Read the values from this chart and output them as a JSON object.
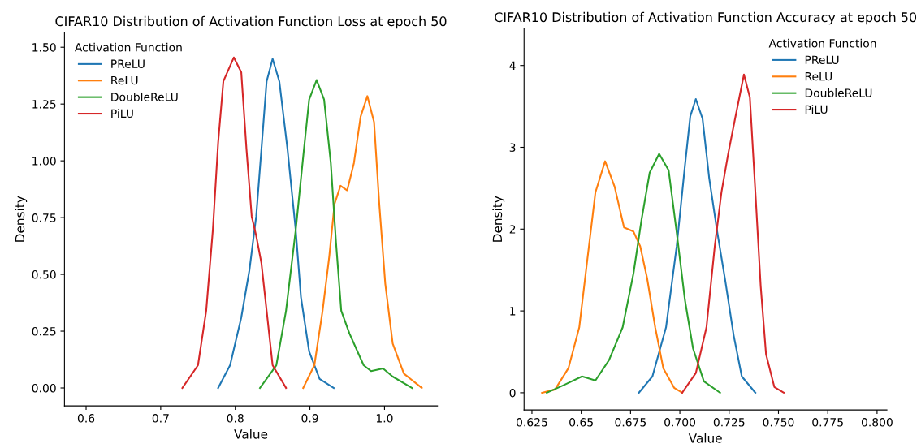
{
  "chart_data": [
    {
      "type": "line",
      "title": "CIFAR10 Distribution of Activation Function Loss at epoch 50",
      "xlabel": "Value",
      "ylabel": "Density",
      "legend_title": "Activation Function",
      "legend": "top left",
      "grid": false,
      "xlim": [
        0.571,
        1.071
      ],
      "xticks": [
        {
          "value": 0.6,
          "label": "0.6"
        },
        {
          "value": 0.7,
          "label": "0.7"
        },
        {
          "value": 0.8,
          "label": "0.8"
        },
        {
          "value": 0.9,
          "label": "0.9"
        },
        {
          "value": 1.0,
          "label": "1.0"
        }
      ],
      "ylim": [
        -0.079,
        1.564
      ],
      "yticks": [
        {
          "value": 0,
          "label": "0.00"
        },
        {
          "value": 0.25,
          "label": "0.25"
        },
        {
          "value": 0.5,
          "label": "0.50"
        },
        {
          "value": 0.75,
          "label": "0.75"
        },
        {
          "value": 1.0,
          "label": "1.00"
        },
        {
          "value": 1.25,
          "label": "1.25"
        },
        {
          "value": 1.5,
          "label": "1.50"
        }
      ],
      "series": [
        {
          "name": "PReLU",
          "color": "#1f77b4",
          "x": [
            0.777,
            0.793,
            0.808,
            0.819,
            0.828,
            0.835,
            0.842,
            0.85,
            0.859,
            0.87,
            0.881,
            0.888,
            0.899,
            0.913,
            0.932
          ],
          "values": [
            0,
            0.1,
            0.31,
            0.52,
            0.755,
            1.05,
            1.35,
            1.449,
            1.35,
            1.05,
            0.695,
            0.4,
            0.16,
            0.04,
            0
          ]
        },
        {
          "name": "ReLU",
          "color": "#ff7f0e",
          "x": [
            0.891,
            0.906,
            0.917,
            0.926,
            0.933,
            0.941,
            0.95,
            0.959,
            0.968,
            0.977,
            0.986,
            0.993,
            1.001,
            1.011,
            1.026,
            1.05
          ],
          "values": [
            0,
            0.1,
            0.34,
            0.58,
            0.81,
            0.89,
            0.87,
            0.99,
            1.195,
            1.285,
            1.17,
            0.81,
            0.46,
            0.195,
            0.063,
            0
          ]
        },
        {
          "name": "DoubleReLU",
          "color": "#2ca02c",
          "x": [
            0.833,
            0.855,
            0.868,
            0.881,
            0.892,
            0.899,
            0.909,
            0.919,
            0.928,
            0.935,
            0.942,
            0.953,
            0.972,
            0.982,
            0.998,
            1.011,
            1.037
          ],
          "values": [
            0,
            0.1,
            0.34,
            0.695,
            1.05,
            1.27,
            1.356,
            1.27,
            0.99,
            0.64,
            0.34,
            0.24,
            0.1,
            0.074,
            0.086,
            0.05,
            0
          ]
        },
        {
          "name": "PiLU",
          "color": "#d62728",
          "x": [
            0.729,
            0.75,
            0.761,
            0.77,
            0.777,
            0.784,
            0.798,
            0.808,
            0.815,
            0.822,
            0.828,
            0.835,
            0.842,
            0.85,
            0.868
          ],
          "values": [
            0,
            0.1,
            0.34,
            0.7,
            1.08,
            1.35,
            1.455,
            1.39,
            1.05,
            0.755,
            0.67,
            0.55,
            0.34,
            0.1,
            0
          ]
        }
      ]
    },
    {
      "type": "line",
      "title": "CIFAR10 Distribution of Activation Function Accuracy at epoch 50",
      "xlabel": "Value",
      "ylabel": "Density",
      "legend_title": "Activation Function",
      "legend": "top right",
      "grid": false,
      "xlim": [
        0.621,
        0.805
      ],
      "xticks": [
        0.625,
        0.65,
        0.675,
        {
          "value": 0.7,
          "label": "0.700"
        },
        0.725,
        {
          "value": 0.75,
          "label": "0.750"
        },
        0.775,
        {
          "value": 0.8,
          "label": "0.800"
        }
      ],
      "ylim": [
        -0.21,
        4.45
      ],
      "yticks": [
        0,
        1,
        2,
        3,
        4
      ],
      "series": [
        {
          "name": "PReLU",
          "color": "#1f77b4",
          "x": [
            0.6792,
            0.6861,
            0.693,
            0.6984,
            0.7026,
            0.7053,
            0.7081,
            0.7115,
            0.7149,
            0.719,
            0.7231,
            0.7273,
            0.7314,
            0.7383
          ],
          "values": [
            0,
            0.2,
            0.8,
            1.79,
            2.78,
            3.38,
            3.59,
            3.35,
            2.62,
            1.96,
            1.36,
            0.7,
            0.2,
            0
          ]
        },
        {
          "name": "ReLU",
          "color": "#ff7f0e",
          "x": [
            0.6301,
            0.6367,
            0.6435,
            0.649,
            0.6531,
            0.6572,
            0.6621,
            0.6669,
            0.6717,
            0.6765,
            0.6799,
            0.6834,
            0.6875,
            0.6916,
            0.6971,
            0.7012
          ],
          "values": [
            0,
            0.04,
            0.3,
            0.8,
            1.63,
            2.45,
            2.83,
            2.52,
            2.02,
            1.97,
            1.79,
            1.4,
            0.8,
            0.3,
            0.06,
            0
          ]
        },
        {
          "name": "DoubleReLU",
          "color": "#2ca02c",
          "x": [
            0.6325,
            0.6408,
            0.6504,
            0.6572,
            0.6641,
            0.671,
            0.6765,
            0.6806,
            0.6847,
            0.6895,
            0.6943,
            0.6984,
            0.7026,
            0.7067,
            0.7122,
            0.7204
          ],
          "values": [
            0,
            0.09,
            0.2,
            0.15,
            0.4,
            0.8,
            1.46,
            2.12,
            2.69,
            2.92,
            2.72,
            1.96,
            1.13,
            0.54,
            0.14,
            0
          ]
        },
        {
          "name": "PiLU",
          "color": "#d62728",
          "x": [
            0.7012,
            0.7081,
            0.7135,
            0.7177,
            0.7211,
            0.7245,
            0.728,
            0.7325,
            0.7355,
            0.7383,
            0.741,
            0.7437,
            0.7479,
            0.7527
          ],
          "values": [
            0,
            0.24,
            0.8,
            1.79,
            2.45,
            2.92,
            3.35,
            3.89,
            3.61,
            2.45,
            1.3,
            0.47,
            0.07,
            0
          ]
        }
      ]
    }
  ]
}
